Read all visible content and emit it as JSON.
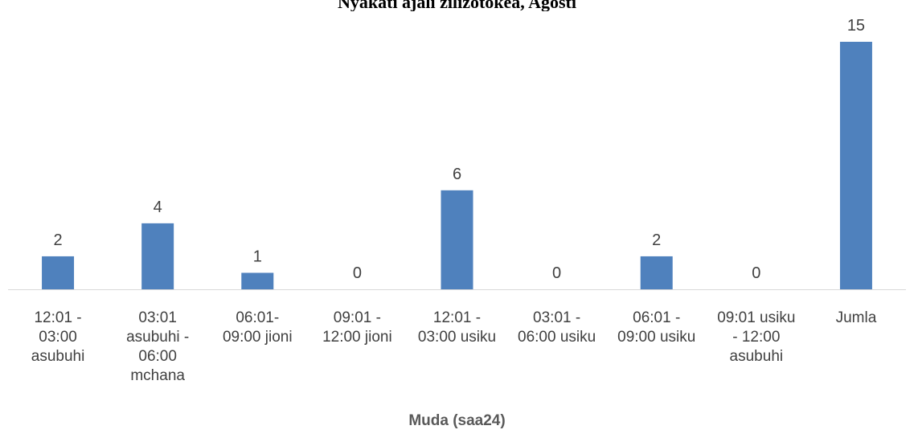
{
  "chart_data": {
    "type": "bar",
    "title": "Nyakati ajali zilizotokea, Agosti",
    "xlabel": "Muda (saa24)",
    "ylabel": "",
    "categories": [
      [
        "12:01 -",
        "03:00",
        "asubuhi"
      ],
      [
        "03:01",
        "asubuhi -",
        "06:00",
        "mchana"
      ],
      [
        "06:01-",
        "09:00 jioni"
      ],
      [
        "09:01 -",
        "12:00 jioni"
      ],
      [
        "12:01 -",
        "03:00 usiku"
      ],
      [
        "03:01 -",
        "06:00 usiku"
      ],
      [
        "06:01 -",
        "09:00 usiku"
      ],
      [
        "09:01 usiku",
        "- 12:00",
        "asubuhi"
      ],
      [
        "Jumla"
      ]
    ],
    "values": [
      2,
      4,
      1,
      0,
      6,
      0,
      2,
      0,
      15
    ],
    "ylim": [
      0,
      15
    ],
    "grid": false,
    "legend": "none",
    "bar_color": "#4f81bd"
  }
}
